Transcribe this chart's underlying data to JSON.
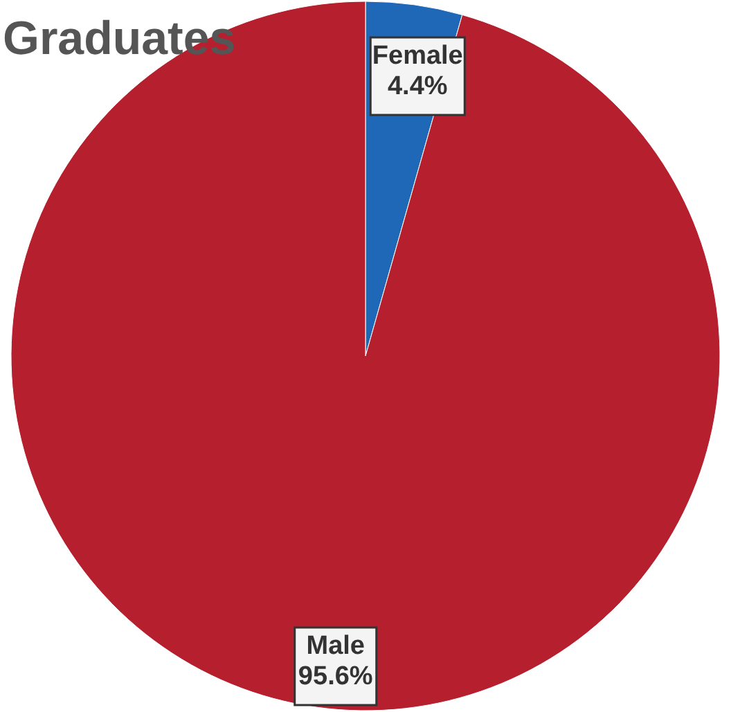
{
  "chart_data": {
    "type": "pie",
    "title": "Graduates",
    "categories": [
      "Female",
      "Male"
    ],
    "values": [
      4.4,
      95.6
    ],
    "colors": [
      "#1f68b8",
      "#b51f2e"
    ],
    "value_labels": [
      "4.4%",
      "95.6%"
    ]
  }
}
